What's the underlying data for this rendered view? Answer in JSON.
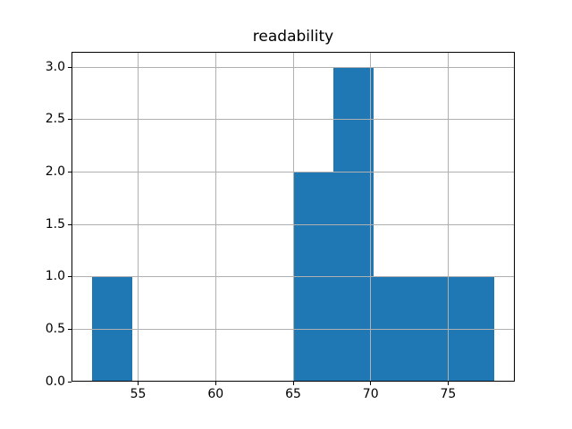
{
  "chart_data": {
    "type": "bar",
    "subtype": "histogram",
    "title": "readability",
    "bin_edges": [
      52.0,
      54.6,
      57.2,
      59.8,
      62.4,
      65.0,
      67.6,
      70.2,
      72.8,
      75.4,
      78.0
    ],
    "counts": [
      1,
      0,
      0,
      0,
      0,
      2,
      3,
      1,
      1,
      1
    ],
    "xticks": [
      55,
      60,
      65,
      70,
      75
    ],
    "xtick_labels": [
      "55",
      "60",
      "65",
      "70",
      "75"
    ],
    "yticks": [
      0.0,
      0.5,
      1.0,
      1.5,
      2.0,
      2.5,
      3.0
    ],
    "ytick_labels": [
      "0.0",
      "0.5",
      "1.0",
      "1.5",
      "2.0",
      "2.5",
      "3.0"
    ],
    "xlim": [
      50.7,
      79.3
    ],
    "ylim": [
      0,
      3.15
    ],
    "xlabel": "",
    "ylabel": "",
    "grid": true,
    "legend": false,
    "bar_color": "#1f77b4",
    "grid_color": "#b0b0b0",
    "axis_color": "#000000",
    "background_color": "#ffffff"
  }
}
